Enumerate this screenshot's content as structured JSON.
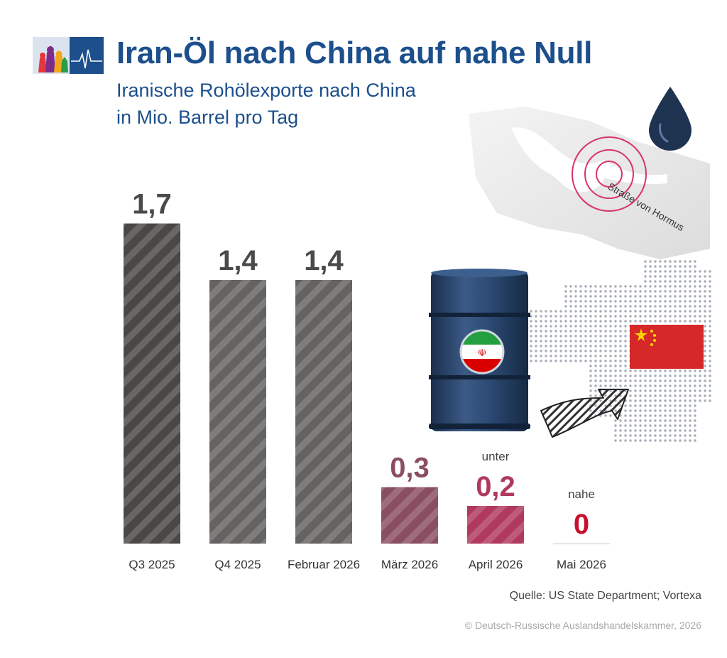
{
  "header": {
    "title": "Iran-Öl nach China auf nahe Null",
    "subtitle_line1": "Iranische Rohölexporte nach China",
    "subtitle_line2": "in Mio. Barrel pro Tag"
  },
  "illustration": {
    "map_label": "Straße von Hormus",
    "icons": [
      "oil-drop-icon",
      "oil-barrel-icon",
      "iran-flag-icon",
      "china-flag-icon",
      "export-arrow-icon",
      "china-dot-map"
    ]
  },
  "colors": {
    "title": "#1c4f8c",
    "bar_dark": "#4a4747",
    "bar_mid": "#656262",
    "bar_mauve": "#8a4e63",
    "bar_pink": "#b03a5e",
    "value_gray": "#4a4a4a",
    "value_mauve": "#8a4e63",
    "value_pink": "#b03a5e",
    "value_red": "#c8102e"
  },
  "chart_data": {
    "type": "bar",
    "title": "Iran-Öl nach China auf nahe Null",
    "subtitle": "Iranische Rohölexporte nach China in Mio. Barrel pro Tag",
    "categories": [
      "Q3 2025",
      "Q4 2025",
      "Februar 2026",
      "März 2026",
      "April 2026",
      "Mai 2026"
    ],
    "values": [
      1.7,
      1.4,
      1.4,
      0.3,
      0.2,
      0
    ],
    "value_labels": [
      "1,7",
      "1,4",
      "1,4",
      "0,3",
      "0,2",
      "0"
    ],
    "value_prefixes": [
      "",
      "",
      "",
      "",
      "unter",
      "nahe"
    ],
    "value_colors": [
      "#4a4a4a",
      "#4a4a4a",
      "#4a4a4a",
      "#8a4e63",
      "#b03a5e",
      "#c8102e"
    ],
    "bar_colors": [
      "#4a4747",
      "#656262",
      "#656262",
      "#8a4e63",
      "#b03a5e",
      "#b03a5e"
    ],
    "ylim": [
      0,
      1.8
    ],
    "xlabel": "",
    "ylabel": "",
    "grid": false,
    "legend": "none"
  },
  "footer": {
    "source": "Quelle: US State Department; Vortexa",
    "copyright": "© Deutsch-Russische Auslandshandelskammer, 2026"
  }
}
